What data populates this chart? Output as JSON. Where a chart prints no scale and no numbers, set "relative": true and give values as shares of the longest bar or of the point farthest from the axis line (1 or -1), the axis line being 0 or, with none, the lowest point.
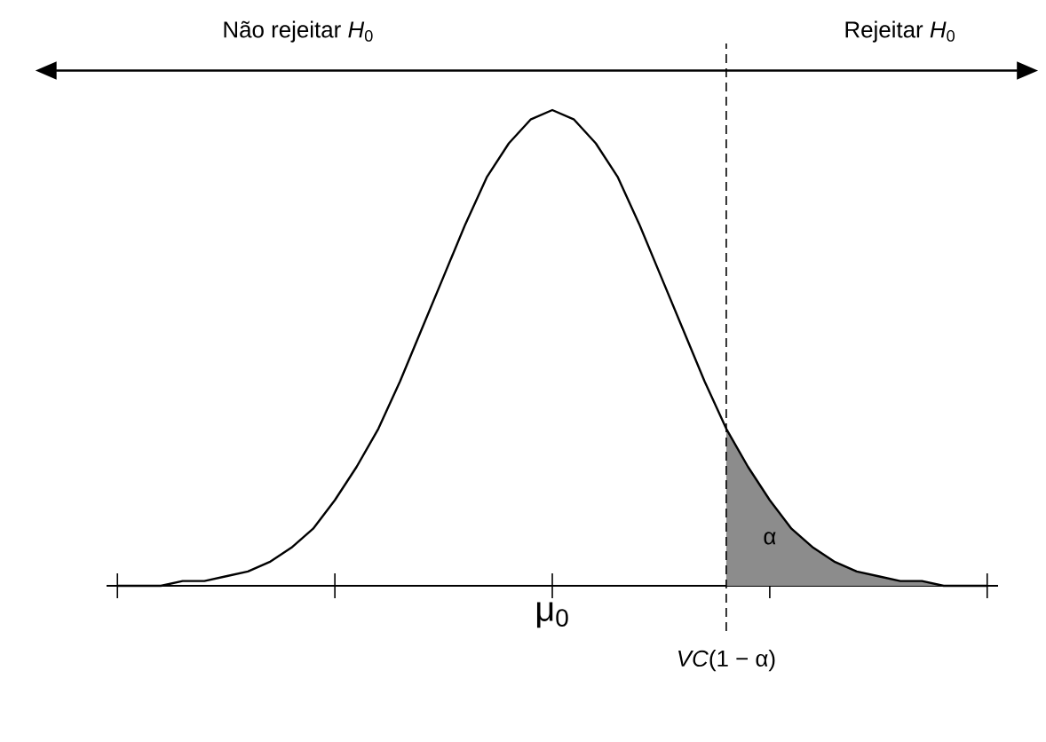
{
  "chart_data": {
    "type": "line",
    "relative": true,
    "categories": [
      null,
      null,
      null,
      null,
      null,
      null,
      null,
      null,
      null,
      null,
      null,
      null,
      null,
      null,
      null,
      null,
      null,
      null,
      null,
      null,
      null,
      null,
      null,
      null,
      null,
      null,
      null,
      null,
      null,
      null,
      null,
      null,
      null,
      null,
      null,
      null,
      null,
      null,
      null,
      null,
      null
    ],
    "series": [
      {
        "color": "#000000",
        "values": [
          0,
          0,
          0,
          0.01,
          0.01,
          0.02,
          0.03,
          0.05,
          0.08,
          0.12,
          0.18,
          0.25,
          0.33,
          0.43,
          0.54,
          0.65,
          0.76,
          0.86,
          0.93,
          0.98,
          1,
          0.98,
          0.93,
          0.86,
          0.76,
          0.65,
          0.54,
          0.43,
          0.33,
          0.25,
          0.18,
          0.12,
          0.08,
          0.05,
          0.03,
          0.02,
          0.01,
          0.01,
          0,
          0,
          0
        ]
      },
      {
        "type": "area",
        "color": "#8c8c8c",
        "values": [
          null,
          null,
          null,
          null,
          null,
          null,
          null,
          null,
          null,
          null,
          null,
          null,
          null,
          null,
          null,
          null,
          null,
          null,
          null,
          null,
          null,
          null,
          null,
          null,
          null,
          null,
          null,
          null,
          0.33,
          0.25,
          0.18,
          0.12,
          0.08,
          0.05,
          0.03,
          0.02,
          0.01,
          0.01,
          0,
          0,
          0
        ]
      }
    ],
    "annotations": [
      "Não rejeitar *H*$_{0}$",
      "Rejeitar *H*$_{0}$",
      "α",
      "μ$_{0}$",
      "*VC*(1 − α)"
    ],
    "marker": "none",
    "line_style": "solid",
    "grid": false
  }
}
